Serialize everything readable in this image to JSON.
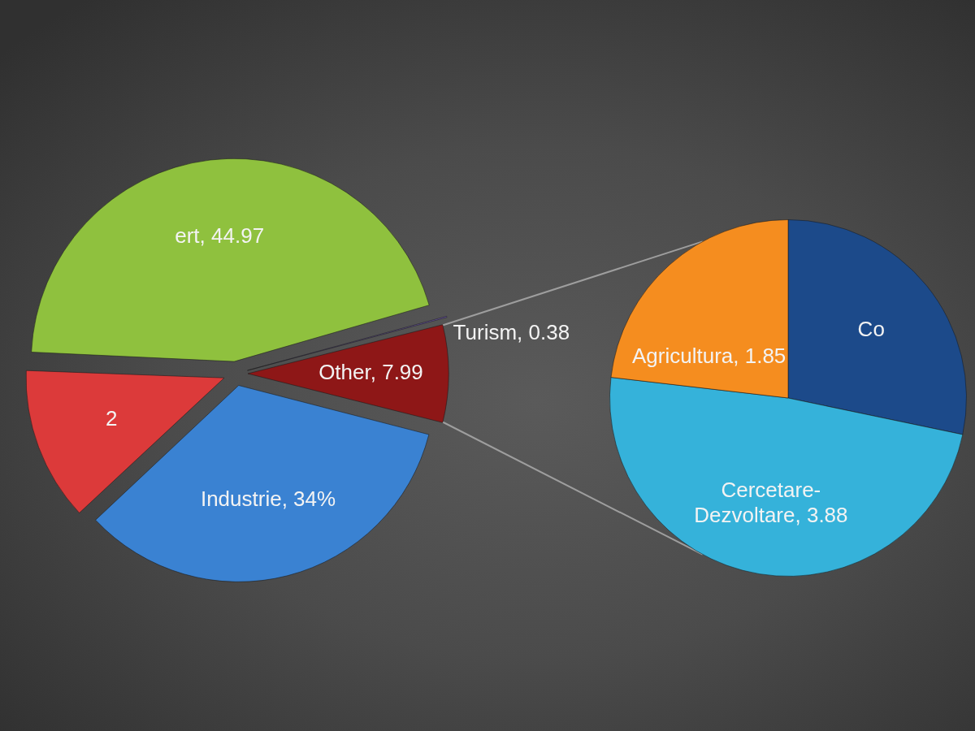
{
  "chart_data": [
    {
      "type": "pie",
      "categories": [
        "ert",
        "Turism",
        "Other",
        "Industrie",
        "2"
      ],
      "values": [
        44.97,
        0.38,
        7.99,
        34,
        12.62
      ],
      "colors": [
        "#8fc13e",
        "#6e5aa6",
        "#8e1717",
        "#3a82d2",
        "#dc3a3a"
      ],
      "value_labels": [
        "44.97",
        "0.38",
        "7.99",
        "34%",
        null
      ]
    },
    {
      "type": "pie",
      "categories": [
        "Co",
        "Cercetare-Dezvoltare",
        "Agricultura"
      ],
      "values": [
        2.26,
        3.88,
        1.85
      ],
      "colors": [
        "#1c4a8a",
        "#35b2da",
        "#f58d1f"
      ],
      "value_labels": [
        null,
        "3.88",
        "1.85"
      ]
    }
  ]
}
